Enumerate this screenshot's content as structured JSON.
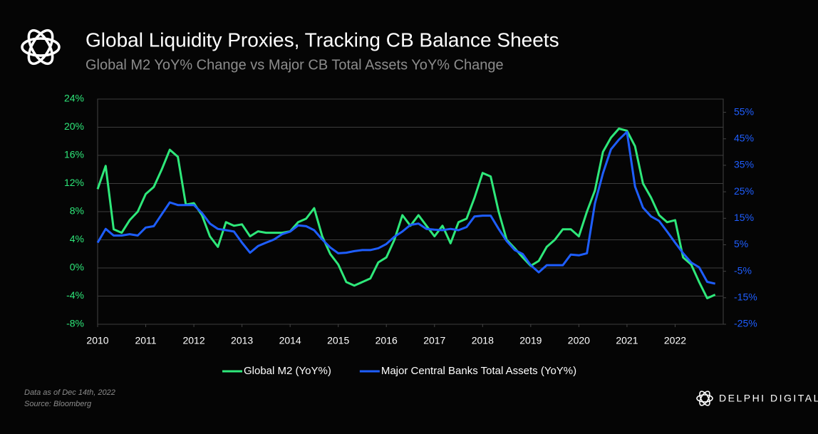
{
  "chart_data": {
    "type": "line",
    "title": "Global Liquidity Proxies, Tracking CB Balance Sheets",
    "subtitle": "Global M2 YoY% Change vs Major CB Total Assets YoY% Change",
    "notes": [
      "Data as of Dec 14th, 2022",
      "Source: Bloomberg"
    ],
    "brand": "DELPHI DIGITAL",
    "x": [
      2010,
      2010.167,
      2010.333,
      2010.5,
      2010.667,
      2010.833,
      2011,
      2011.167,
      2011.333,
      2011.5,
      2011.667,
      2011.833,
      2012,
      2012.167,
      2012.333,
      2012.5,
      2012.667,
      2012.833,
      2013,
      2013.167,
      2013.333,
      2013.5,
      2013.667,
      2013.833,
      2014,
      2014.167,
      2014.333,
      2014.5,
      2014.667,
      2014.833,
      2015,
      2015.167,
      2015.333,
      2015.5,
      2015.667,
      2015.833,
      2016,
      2016.167,
      2016.333,
      2016.5,
      2016.667,
      2016.833,
      2017,
      2017.167,
      2017.333,
      2017.5,
      2017.667,
      2017.833,
      2018,
      2018.167,
      2018.333,
      2018.5,
      2018.667,
      2018.833,
      2019,
      2019.167,
      2019.333,
      2019.5,
      2019.667,
      2019.833,
      2020,
      2020.167,
      2020.333,
      2020.5,
      2020.667,
      2020.833,
      2021,
      2021.167,
      2021.333,
      2021.5,
      2021.667,
      2021.833,
      2022,
      2022.167,
      2022.333,
      2022.5,
      2022.667,
      2022.833
    ],
    "series": [
      {
        "name": "Global M2 (YoY%)",
        "color": "#2ee87a",
        "axis": "y",
        "values": [
          11.2,
          14.5,
          5.5,
          5,
          6.8,
          8,
          10.5,
          11.5,
          14,
          16.8,
          15.8,
          9,
          9.2,
          7.5,
          4.5,
          3,
          6.5,
          6,
          6.2,
          4.5,
          5.2,
          5,
          5,
          5,
          5.2,
          6.5,
          7,
          8.5,
          4.5,
          2,
          0.5,
          -2,
          -2.5,
          -2,
          -1.5,
          0.8,
          1.5,
          4,
          7.5,
          6,
          7.5,
          6,
          4.5,
          6,
          3.5,
          6.5,
          7,
          10,
          13.5,
          13,
          8,
          4,
          2.8,
          1.5,
          0.3,
          1,
          3,
          4,
          5.5,
          5.5,
          4.5,
          8,
          11,
          16.5,
          18.5,
          19.8,
          19.5,
          17.3,
          12,
          10,
          7.5,
          6.5,
          6.8,
          1.5,
          0.5,
          -2,
          -4.3,
          -3.8
        ]
      },
      {
        "name": "Major Central Banks Total Assets (YoY%)",
        "color": "#1e5eff",
        "axis": "y2",
        "values": [
          5.8,
          11,
          8.5,
          8.5,
          9,
          8.5,
          11.5,
          12,
          16.5,
          21,
          20,
          20,
          20,
          17,
          13,
          11,
          10.5,
          10,
          5.8,
          2,
          4.5,
          5.8,
          7,
          9,
          10,
          12.3,
          12,
          10.5,
          7,
          4,
          1.8,
          2,
          2.6,
          3,
          3,
          3.7,
          5.3,
          8,
          10,
          12.5,
          13,
          11,
          10.7,
          10.5,
          11,
          10.5,
          11.7,
          15.7,
          16,
          16,
          11,
          6.4,
          3,
          1.5,
          -2.7,
          -5.4,
          -2.7,
          -2.7,
          -2.7,
          1.3,
          1,
          1.8,
          20.6,
          32,
          41,
          44.7,
          47.6,
          27,
          19,
          15.7,
          14,
          10,
          5.8,
          1.8,
          -1.7,
          -3.5,
          -9,
          -9.7
        ]
      }
    ],
    "xlim": [
      2010,
      2023
    ],
    "xticks": [
      2010,
      2011,
      2012,
      2013,
      2014,
      2015,
      2016,
      2017,
      2018,
      2019,
      2020,
      2021,
      2022
    ],
    "ylim": [
      -8,
      24
    ],
    "yticks": [
      {
        "value": -8,
        "label": "-8%"
      },
      {
        "value": -4,
        "label": "-4%"
      },
      {
        "value": 0,
        "label": "0%"
      },
      {
        "value": 4,
        "label": "4%"
      },
      {
        "value": 8,
        "label": "8%"
      },
      {
        "value": 12,
        "label": "12%"
      },
      {
        "value": 16,
        "label": "16%"
      },
      {
        "value": 20,
        "label": "20%"
      },
      {
        "value": 24,
        "label": "24%"
      }
    ],
    "y2lim": [
      -25,
      60
    ],
    "y2ticks": [
      {
        "value": -25,
        "label": "-25%"
      },
      {
        "value": -15,
        "label": "-15%"
      },
      {
        "value": -5,
        "label": "-5%"
      },
      {
        "value": 5,
        "label": "5%"
      },
      {
        "value": 15,
        "label": "15%"
      },
      {
        "value": 25,
        "label": "25%"
      },
      {
        "value": 35,
        "label": "35%"
      },
      {
        "value": 45,
        "label": "45%"
      },
      {
        "value": 55,
        "label": "55%"
      }
    ],
    "grid": true
  }
}
